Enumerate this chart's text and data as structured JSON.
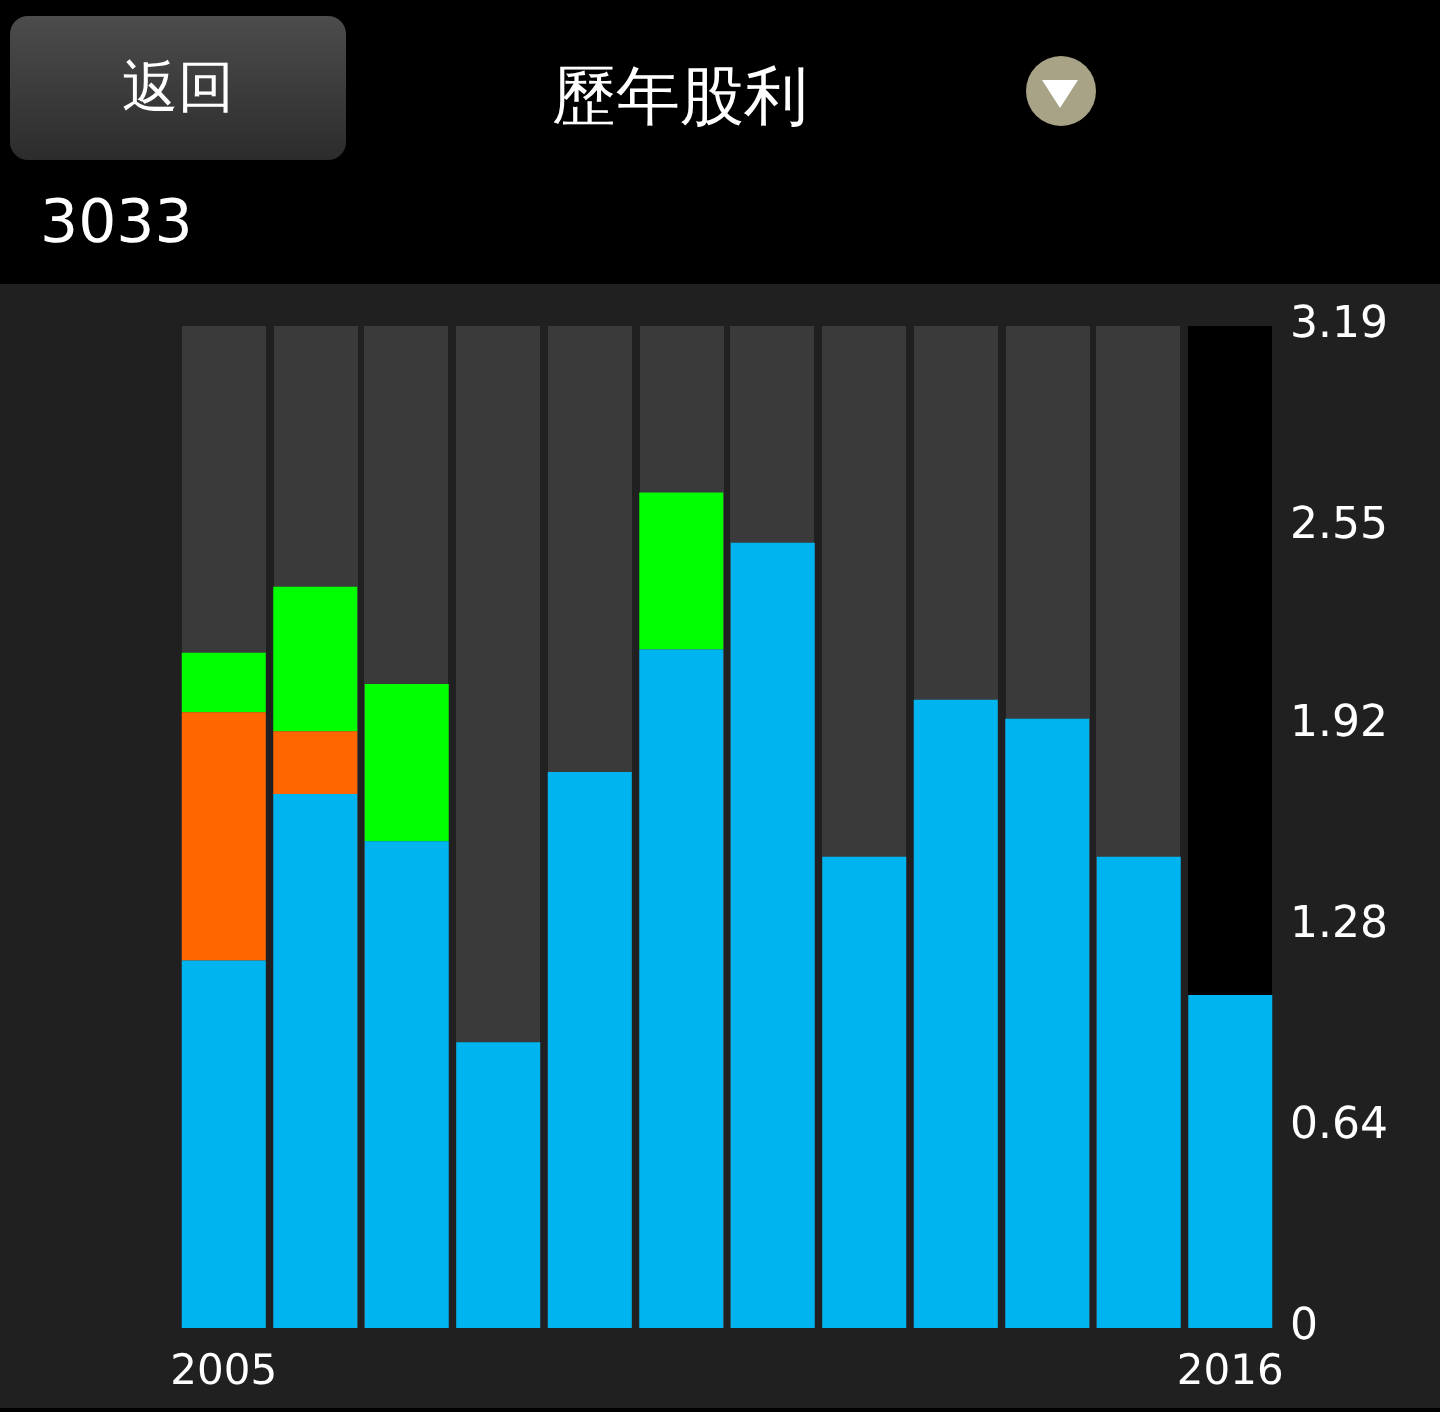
{
  "chart_data": {
    "type": "bar",
    "title": "歷年股利",
    "subtitle": "3033",
    "annotations": [
      "返回"
    ],
    "categories": [
      "2005",
      null,
      null,
      null,
      null,
      null,
      null,
      null,
      null,
      null,
      null,
      "2016"
    ],
    "stacked": true,
    "series": [
      {
        "color": "#00b4f0",
        "values": [
          1.17,
          1.7,
          1.55,
          0.91,
          1.77,
          2.16,
          2.5,
          1.5,
          2.0,
          1.94,
          1.5,
          1.06
        ]
      },
      {
        "color": "#ff6600",
        "values": [
          0.79,
          0.2,
          null,
          null,
          null,
          null,
          null,
          null,
          null,
          null,
          null,
          null
        ]
      },
      {
        "color": "#00ff00",
        "values": [
          0.19,
          0.46,
          0.5,
          null,
          null,
          0.5,
          null,
          null,
          null,
          null,
          null,
          null
        ]
      }
    ],
    "ylim": [
      0,
      3.19
    ],
    "yticks": [
      0,
      0.64,
      1.28,
      1.92,
      2.55,
      3.19
    ]
  }
}
